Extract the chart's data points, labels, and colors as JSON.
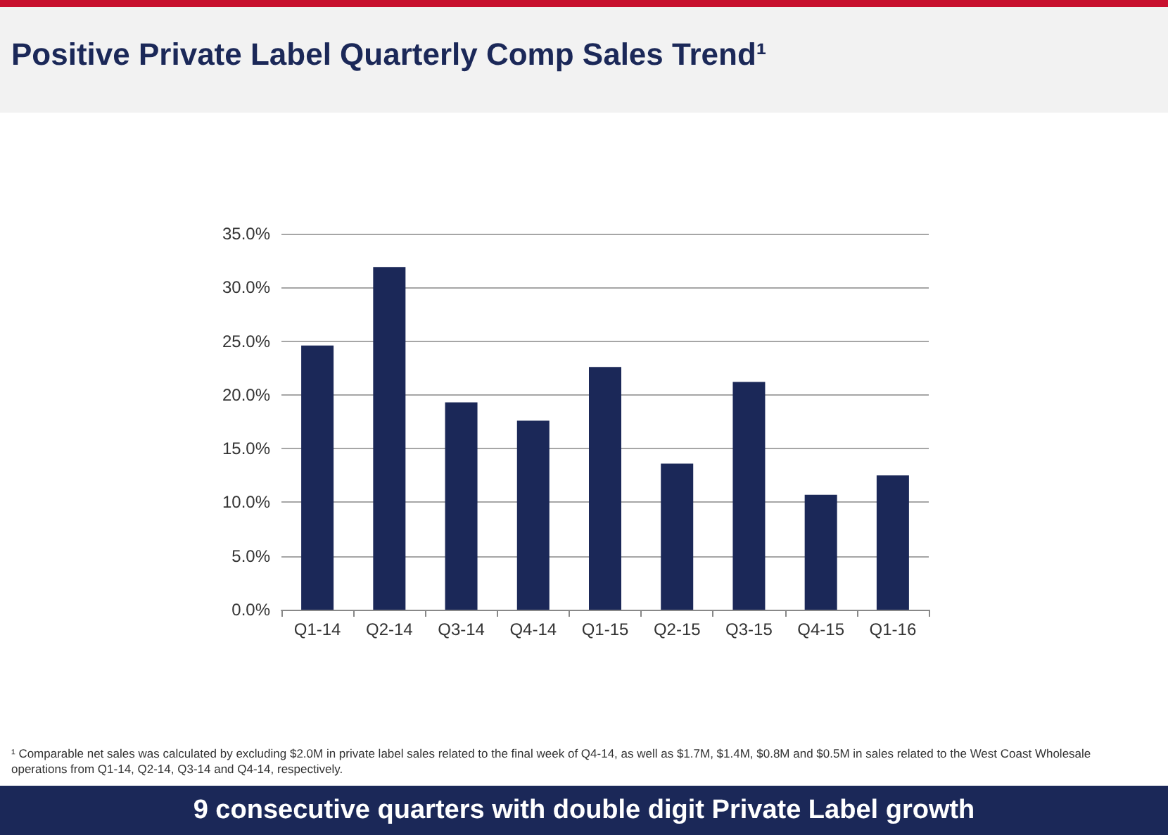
{
  "chart_data": {
    "type": "bar",
    "title": "Positive Private Label Quarterly Comp Sales Trend¹",
    "categories": [
      "Q1-14",
      "Q2-14",
      "Q3-14",
      "Q4-14",
      "Q1-15",
      "Q2-15",
      "Q3-15",
      "Q4-15",
      "Q1-16"
    ],
    "values": [
      24.6,
      31.9,
      19.3,
      17.6,
      22.6,
      13.6,
      21.2,
      10.7,
      12.5
    ],
    "color": "#1b2858",
    "ylim": [
      0,
      35
    ],
    "yticks": [
      {
        "value": 0,
        "label": "0.0%"
      },
      {
        "value": 5,
        "label": "5.0%"
      },
      {
        "value": 10,
        "label": "10.0%"
      },
      {
        "value": 15,
        "label": "15.0%"
      },
      {
        "value": 20,
        "label": "20.0%"
      },
      {
        "value": 25,
        "label": "25.0%"
      },
      {
        "value": 30,
        "label": "30.0%"
      },
      {
        "value": 35,
        "label": "35.0%"
      }
    ],
    "grid": "y",
    "annotations": [
      "¹ Comparable net sales was calculated by excluding $2.0M in private label sales related to the final week of Q4-14, as well as $1.7M, $1.4M, $0.8M and $0.5M in sales related to the West Coast Wholesale operations from Q1-14, Q2-14, Q3-14 and Q4-14, respectively.",
      "9 consecutive quarters with double digit Private Label growth"
    ]
  }
}
